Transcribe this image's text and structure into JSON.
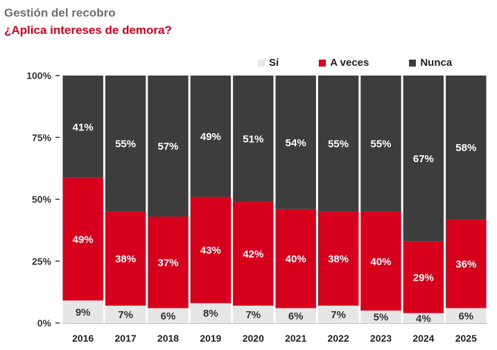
{
  "header": {
    "title": "Gestión del recobro",
    "subtitle": "¿Aplica intereses de demora?"
  },
  "colors": {
    "si": "#e6e6e6",
    "a_veces": "#d6001c",
    "nunca": "#3d3d3d",
    "label_light": "#ffffff",
    "label_dark": "#333333"
  },
  "chart_data": {
    "type": "bar",
    "stacked": true,
    "categories": [
      "2016",
      "2017",
      "2018",
      "2019",
      "2020",
      "2021",
      "2022",
      "2023",
      "2024",
      "2025"
    ],
    "series": [
      {
        "name": "Sí",
        "values": [
          9,
          7,
          6,
          8,
          7,
          6,
          7,
          5,
          4,
          6
        ],
        "labels": [
          "9%",
          "7%",
          "6%",
          "8%",
          "7%",
          "6%",
          "7%",
          "5%",
          "4%",
          "6%"
        ]
      },
      {
        "name": "A veces",
        "values": [
          49,
          38,
          37,
          43,
          42,
          40,
          38,
          40,
          29,
          36
        ],
        "labels": [
          "49%",
          "38%",
          "37%",
          "43%",
          "42%",
          "40%",
          "38%",
          "40%",
          "29%",
          "36%"
        ]
      },
      {
        "name": "Nunca",
        "values": [
          41,
          55,
          57,
          49,
          51,
          54,
          55,
          55,
          67,
          58
        ],
        "labels": [
          "41%",
          "55%",
          "57%",
          "49%",
          "51%",
          "54%",
          "55%",
          "55%",
          "67%",
          "58%"
        ]
      }
    ],
    "y_ticks": [
      "0%",
      "25%",
      "50%",
      "75%",
      "100%"
    ],
    "ylim": [
      0,
      100
    ],
    "legend": "top-right",
    "grid": false
  }
}
